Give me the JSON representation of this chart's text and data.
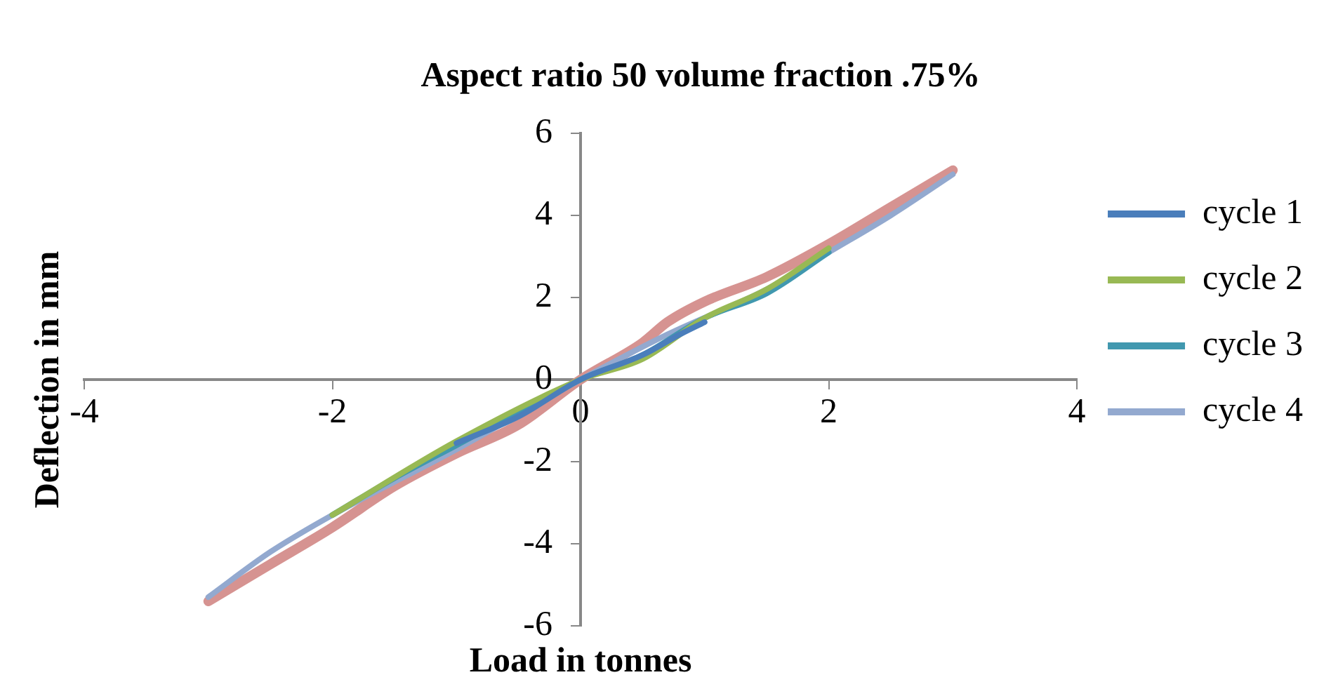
{
  "chart_data": {
    "type": "line",
    "title": "Aspect ratio 50 volume fraction .75%",
    "xlabel": "Load in tonnes",
    "ylabel": "Deflection in mm",
    "xlim": [
      -4,
      4
    ],
    "xticks": [
      -4,
      -2,
      0,
      2,
      4
    ],
    "ylim": [
      -6,
      6
    ],
    "yticks": [
      -6,
      -4,
      -2,
      0,
      2,
      4,
      6
    ],
    "grid": false,
    "legend": "right",
    "marker": "none",
    "line_style": "solid",
    "series": [
      {
        "name": "cycle 1",
        "color": "#4a7ebb",
        "x": [
          -1,
          -0.5,
          0,
          0.5,
          0.8,
          1
        ],
        "values": [
          -1.55,
          -0.9,
          0,
          0.6,
          1.1,
          1.4
        ]
      },
      {
        "name": "cycle 2",
        "color": "#98b954",
        "x": [
          -2,
          -1,
          0,
          0.5,
          1,
          1.5,
          2
        ],
        "values": [
          -3.3,
          -1.5,
          0,
          0.5,
          1.5,
          2.2,
          3.2
        ]
      },
      {
        "name": "cycle 3",
        "color": "#4198af",
        "x": [
          -2,
          -1.5,
          -1,
          0,
          0.5,
          1,
          1.5,
          2
        ],
        "values": [
          -3.3,
          -2.4,
          -1.6,
          0,
          0.6,
          1.5,
          2.1,
          3.1
        ]
      },
      {
        "name": "cycle 4",
        "color": "#93a9cf",
        "x": [
          -3,
          -2.5,
          -2,
          -1,
          0,
          0.7,
          1.5,
          2,
          2.5,
          3
        ],
        "values": [
          -5.3,
          -4.2,
          -3.3,
          -1.7,
          0,
          1.1,
          2.2,
          3.1,
          4.0,
          5.0
        ]
      },
      {
        "color": "#d69391",
        "x": [
          -3,
          -2.5,
          -2,
          -1.5,
          -1,
          -0.5,
          0,
          0.5,
          0.7,
          1,
          1.5,
          2,
          2.5,
          3
        ],
        "values": [
          -5.4,
          -4.5,
          -3.6,
          -2.6,
          -1.8,
          -1.1,
          0,
          0.9,
          1.4,
          1.9,
          2.5,
          3.3,
          4.2,
          5.1
        ]
      }
    ]
  }
}
